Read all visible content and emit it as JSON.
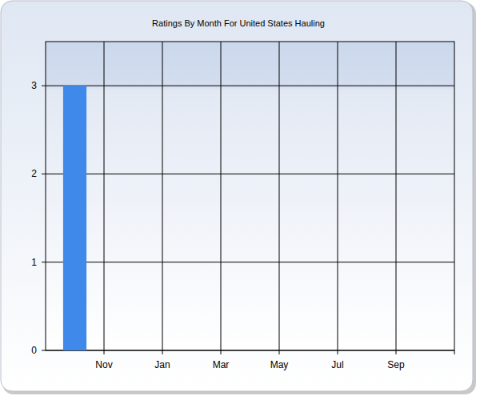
{
  "chart_data": {
    "type": "bar",
    "title": "Ratings By Month For United States Hauling",
    "categories": [
      null,
      "Nov",
      null,
      "Jan",
      null,
      "Mar",
      null,
      "May",
      null,
      "Jul",
      null,
      "Sep",
      null
    ],
    "values": [
      3,
      0,
      0,
      0,
      0,
      0,
      0,
      0,
      0,
      0,
      0,
      0,
      0
    ],
    "color": "#3f89ea",
    "ylim": [
      0,
      3.5
    ],
    "yticks": [
      0,
      1,
      2,
      3
    ],
    "grid": true
  }
}
